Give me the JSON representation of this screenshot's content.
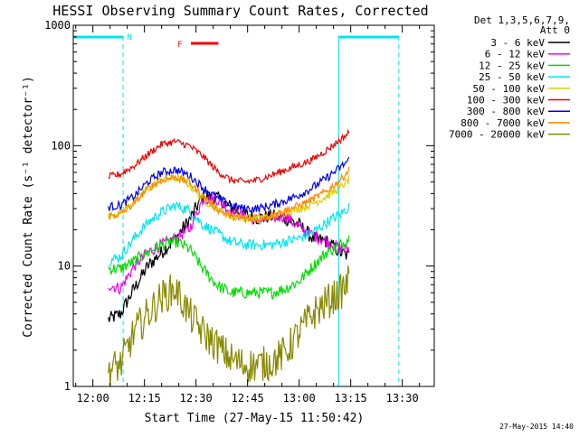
{
  "chart_data": {
    "type": "line",
    "title": "HESSI Observing Summary Count Rates, Corrected",
    "xlabel": "Start Time (27-May-15 11:50:42)",
    "ylabel": "Corrected Count Rate (s⁻¹ detector⁻¹)",
    "yscale": "log",
    "ylim": [
      1,
      1000
    ],
    "xlim_minutes": [
      -5.7,
      99.3
    ],
    "x_ticks": [
      {
        "t": 0,
        "label": "12:00"
      },
      {
        "t": 15,
        "label": "12:15"
      },
      {
        "t": 30,
        "label": "12:30"
      },
      {
        "t": 45,
        "label": "12:45"
      },
      {
        "t": 60,
        "label": "13:00"
      },
      {
        "t": 75,
        "label": "13:15"
      },
      {
        "t": 90,
        "label": "13:30"
      }
    ],
    "y_ticks": [
      {
        "v": 1,
        "label": "1"
      },
      {
        "v": 10,
        "label": "10"
      },
      {
        "v": 100,
        "label": "100"
      },
      {
        "v": 1000,
        "label": "1000"
      }
    ],
    "legend_header": [
      "Det 1,3,5,6,7,9,",
      "Att 0"
    ],
    "legend_position": "top-right",
    "footer_timestamp": "27-May-2015 14:40",
    "annotations": {
      "night_label": "N",
      "flare_label": "F"
    },
    "colors": {
      "axes": "#000000",
      "night": "#00e5ee",
      "flare": "#ee0000"
    },
    "intervals": {
      "night": [
        {
          "start": -5.7,
          "end": 8.8
        },
        {
          "start": 71.5,
          "end": 89.0
        }
      ],
      "flare": [
        {
          "start": 28.5,
          "end": 36.5
        }
      ]
    },
    "x": [
      4.5,
      8,
      12,
      16,
      20,
      24,
      28,
      32,
      36,
      40,
      44,
      48,
      52,
      56,
      60,
      64,
      68,
      72,
      74.5
    ],
    "series": [
      {
        "name": "3 - 6 keV",
        "color": "#000000",
        "noise": 0.06,
        "values": [
          3.6,
          4.0,
          6.5,
          10,
          13,
          17,
          24,
          38,
          37,
          31,
          27,
          25,
          26,
          25,
          22,
          17,
          16,
          13,
          12
        ]
      },
      {
        "name": "6 - 12 keV",
        "color": "#ee00ee",
        "noise": 0.05,
        "values": [
          7.0,
          6.5,
          10,
          13,
          15,
          17,
          20,
          36,
          36,
          29,
          26,
          24,
          25,
          26,
          21,
          18,
          16,
          14,
          14
        ]
      },
      {
        "name": "12 - 25 keV",
        "color": "#00dd00",
        "noise": 0.05,
        "values": [
          9.5,
          9.5,
          11,
          13,
          15,
          16,
          14,
          9.5,
          7.0,
          6.0,
          6.0,
          6.0,
          6.0,
          6.5,
          7.5,
          10,
          13,
          15,
          17
        ]
      },
      {
        "name": "25 - 50 keV",
        "color": "#00e5ee",
        "noise": 0.045,
        "values": [
          11,
          12,
          17,
          23,
          28,
          32,
          29,
          22,
          19,
          16,
          15,
          15,
          15,
          16,
          17,
          19,
          23,
          27,
          31
        ]
      },
      {
        "name": "50 - 100 keV",
        "color": "#ddcc00",
        "noise": 0.035,
        "values": [
          26,
          28,
          34,
          44,
          52,
          54,
          48,
          36,
          30,
          26,
          25,
          25,
          26,
          28,
          30,
          33,
          38,
          45,
          52
        ]
      },
      {
        "name": "100 - 300 keV",
        "color": "#ee0000",
        "noise": 0.03,
        "values": [
          55,
          58,
          68,
          85,
          103,
          108,
          100,
          82,
          62,
          52,
          50,
          52,
          57,
          63,
          69,
          77,
          92,
          112,
          128
        ]
      },
      {
        "name": "300 - 800 keV",
        "color": "#0000ee",
        "noise": 0.035,
        "values": [
          31,
          32,
          38,
          50,
          60,
          63,
          57,
          45,
          37,
          32,
          30,
          30,
          32,
          35,
          39,
          45,
          54,
          66,
          76
        ]
      },
      {
        "name": "800 - 7000 keV",
        "color": "#ff8800",
        "noise": 0.03,
        "values": [
          26,
          27,
          33,
          44,
          52,
          55,
          50,
          38,
          30,
          26,
          25,
          24,
          26,
          29,
          32,
          36,
          42,
          52,
          63
        ]
      },
      {
        "name": "7000 - 20000 keV",
        "color": "#888800",
        "noise": 0.15,
        "values": [
          1.4,
          1.5,
          2.8,
          4.0,
          5.5,
          6.5,
          4.0,
          2.8,
          2.2,
          1.7,
          1.5,
          1.5,
          1.6,
          1.9,
          2.8,
          4.0,
          5.0,
          6.0,
          7.5
        ]
      }
    ]
  }
}
